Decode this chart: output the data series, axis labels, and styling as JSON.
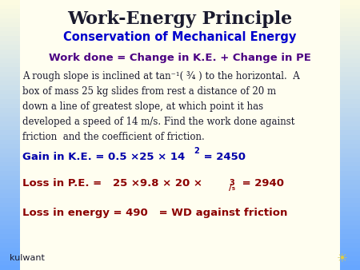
{
  "bg_color": "#fffef0",
  "title": "Work-Energy Principle",
  "title_color": "#1a1a2e",
  "subtitle": "Conservation of Mechanical Energy",
  "subtitle_color": "#0000cc",
  "formula": "Work done = Change in K.E. + Change in PE",
  "formula_color": "#4b0082",
  "body_text_color": "#1a1a2e",
  "highlight_color_ke": "#0000aa",
  "highlight_color": "#8b0000",
  "body_lines": [
    "A rough slope is inclined at tan⁻¹( ¾ ) to the horizontal.  A",
    "box of mass 25 kg slides from rest a distance of 20 m",
    "down a line of greatest slope, at which point it has",
    "developed a speed of 14 m/s. Find the work done against",
    "friction  and the coefficient of friction."
  ],
  "footer_label": "kulwant",
  "bar_width": 0.055
}
